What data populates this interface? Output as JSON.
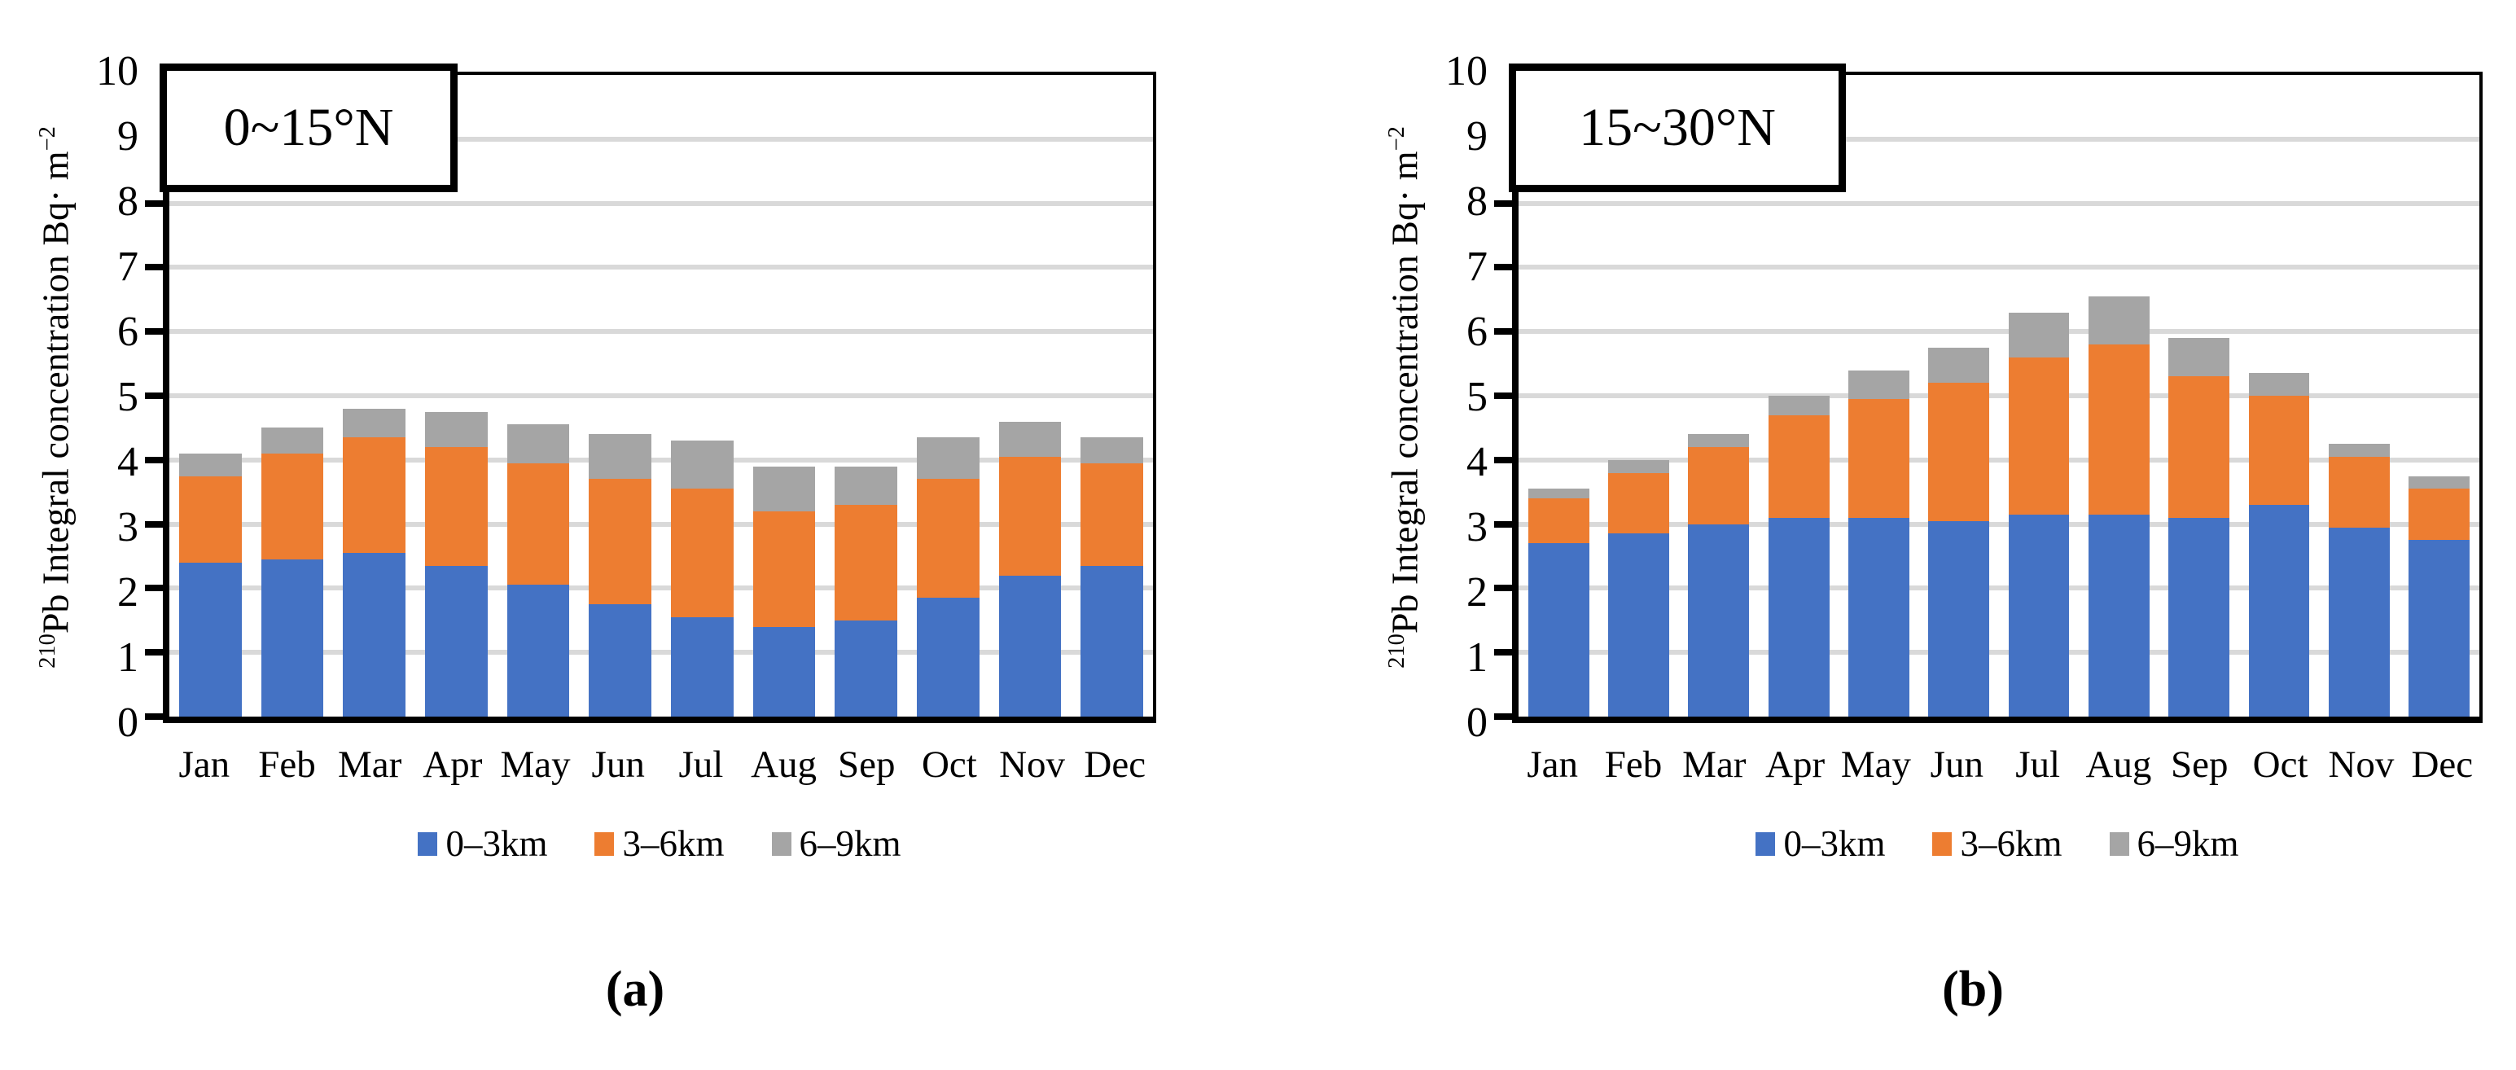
{
  "colors": {
    "series_blue": "#4472C4",
    "series_orange": "#ED7D31",
    "series_gray": "#A5A5A5",
    "gridline": "#D9D9D9",
    "axis": "#000000"
  },
  "y_axis_title": {
    "iso_sup": "210",
    "text": "Pb Integral concentration Bq· m",
    "exp_sup": "−2"
  },
  "panels": [
    {
      "region_label": "0~15°N",
      "caption": "(a)"
    },
    {
      "region_label": "15~30°N",
      "caption": "(b)"
    }
  ],
  "chart_data": [
    {
      "type": "bar",
      "stacked": true,
      "title": "0~15°N",
      "categories": [
        "Jan",
        "Feb",
        "Mar",
        "Apr",
        "May",
        "Jun",
        "Jul",
        "Aug",
        "Sep",
        "Oct",
        "Nov",
        "Dec"
      ],
      "series": [
        {
          "name": "0–3km",
          "color": "#4472C4",
          "values": [
            2.4,
            2.45,
            2.55,
            2.35,
            2.05,
            1.75,
            1.55,
            1.4,
            1.5,
            1.85,
            2.2,
            2.35
          ]
        },
        {
          "name": "3–6km",
          "color": "#ED7D31",
          "values": [
            1.35,
            1.65,
            1.8,
            1.85,
            1.9,
            1.95,
            2.0,
            1.8,
            1.8,
            1.85,
            1.85,
            1.6
          ]
        },
        {
          "name": "6–9km",
          "color": "#A5A5A5",
          "values": [
            0.35,
            0.4,
            0.45,
            0.55,
            0.6,
            0.7,
            0.75,
            0.7,
            0.6,
            0.65,
            0.55,
            0.4
          ]
        }
      ],
      "totals": [
        4.1,
        4.5,
        4.8,
        4.75,
        4.55,
        4.4,
        4.3,
        3.9,
        3.9,
        4.35,
        4.6,
        4.35
      ],
      "xlabel": "",
      "ylabel": "210Pb Integral concentration Bq·m−2",
      "ylim": [
        0,
        10
      ],
      "y_ticks": [
        0,
        1,
        2,
        3,
        4,
        5,
        6,
        7,
        8,
        9,
        10
      ],
      "grid": true,
      "legend_position": "bottom"
    },
    {
      "type": "bar",
      "stacked": true,
      "title": "15~30°N",
      "categories": [
        "Jan",
        "Feb",
        "Mar",
        "Apr",
        "May",
        "Jun",
        "Jul",
        "Aug",
        "Sep",
        "Oct",
        "Nov",
        "Dec"
      ],
      "series": [
        {
          "name": "0–3km",
          "color": "#4472C4",
          "values": [
            2.7,
            2.85,
            3.0,
            3.1,
            3.1,
            3.05,
            3.15,
            3.15,
            3.1,
            3.3,
            2.95,
            2.75
          ]
        },
        {
          "name": "3–6km",
          "color": "#ED7D31",
          "values": [
            0.7,
            0.95,
            1.2,
            1.6,
            1.85,
            2.15,
            2.45,
            2.65,
            2.2,
            1.7,
            1.1,
            0.8
          ]
        },
        {
          "name": "6–9km",
          "color": "#A5A5A5",
          "values": [
            0.15,
            0.2,
            0.2,
            0.3,
            0.45,
            0.55,
            0.7,
            0.75,
            0.6,
            0.35,
            0.2,
            0.2
          ]
        }
      ],
      "totals": [
        3.55,
        4.0,
        4.4,
        5.0,
        5.4,
        5.75,
        6.3,
        6.55,
        5.9,
        5.35,
        4.25,
        3.75
      ],
      "xlabel": "",
      "ylabel": "210Pb Integral concentration Bq·m−2",
      "ylim": [
        0,
        10
      ],
      "y_ticks": [
        0,
        1,
        2,
        3,
        4,
        5,
        6,
        7,
        8,
        9,
        10
      ],
      "grid": true,
      "legend_position": "bottom"
    }
  ]
}
